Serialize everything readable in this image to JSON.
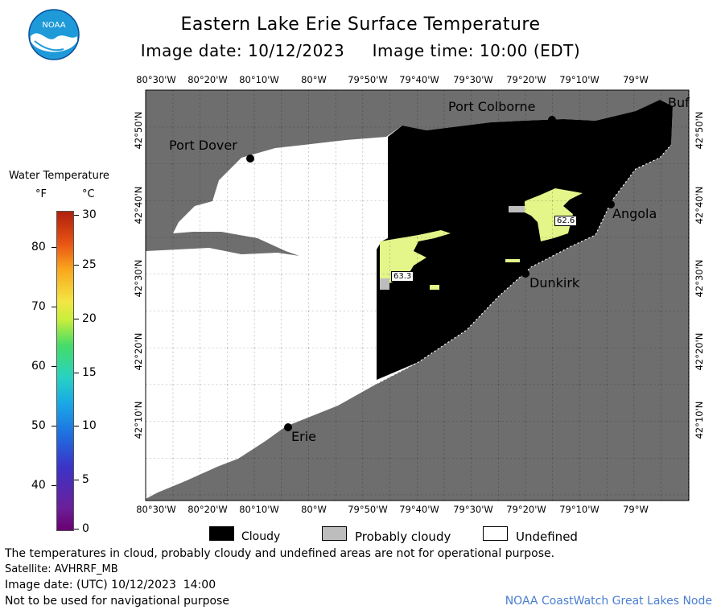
{
  "header": {
    "title": "Eastern Lake Erie Surface Temperature",
    "image_date": "Image date: 10/12/2023",
    "image_time": "Image time: 10:00 (EDT)",
    "logo_text": "NOAA"
  },
  "map": {
    "lon_labels": [
      "80°30'W",
      "80°20'W",
      "80°10'W",
      "80°W",
      "79°50'W",
      "79°40'W",
      "79°30'W",
      "79°20'W",
      "79°10'W",
      "79°W"
    ],
    "lat_labels": [
      "42°50'N",
      "42°40'N",
      "42°30'N",
      "42°20'N",
      "42°10'N"
    ],
    "places": {
      "port_dover": "Port Dover",
      "port_colborne": "Port Colborne",
      "buffalo": "Buf",
      "angola": "Angola",
      "dunkirk": "Dunkirk",
      "erie": "Erie"
    },
    "temp_readings": [
      "63.3",
      "62.6"
    ],
    "colors": {
      "land": "#6e6e6e",
      "cloud": "#000000",
      "undefined": "#ffffff",
      "probably_cloudy": "#bdbdbd",
      "warm_water": "#e4f58a"
    }
  },
  "legend": {
    "title": "Water Temperature",
    "unit_f": "°F",
    "unit_c": "°C",
    "f_ticks": [
      "80",
      "70",
      "60",
      "50",
      "40"
    ],
    "c_ticks": [
      "30",
      "25",
      "20",
      "15",
      "10",
      "5",
      "0"
    ]
  },
  "key": {
    "cloudy": "Cloudy",
    "probably_cloudy": "Probably cloudy",
    "undefined": "Undefined"
  },
  "footer": {
    "note": "The temperatures in cloud, probably cloudy and undefined areas are not for operational purpose.",
    "satellite": "Satellite: AVHRRF_MB",
    "utc_date": "Image date: (UTC) 10/12/2023  14:00",
    "nav_warning": "Not to be used for navigational purpose",
    "credit": "NOAA CoastWatch Great Lakes Node"
  }
}
